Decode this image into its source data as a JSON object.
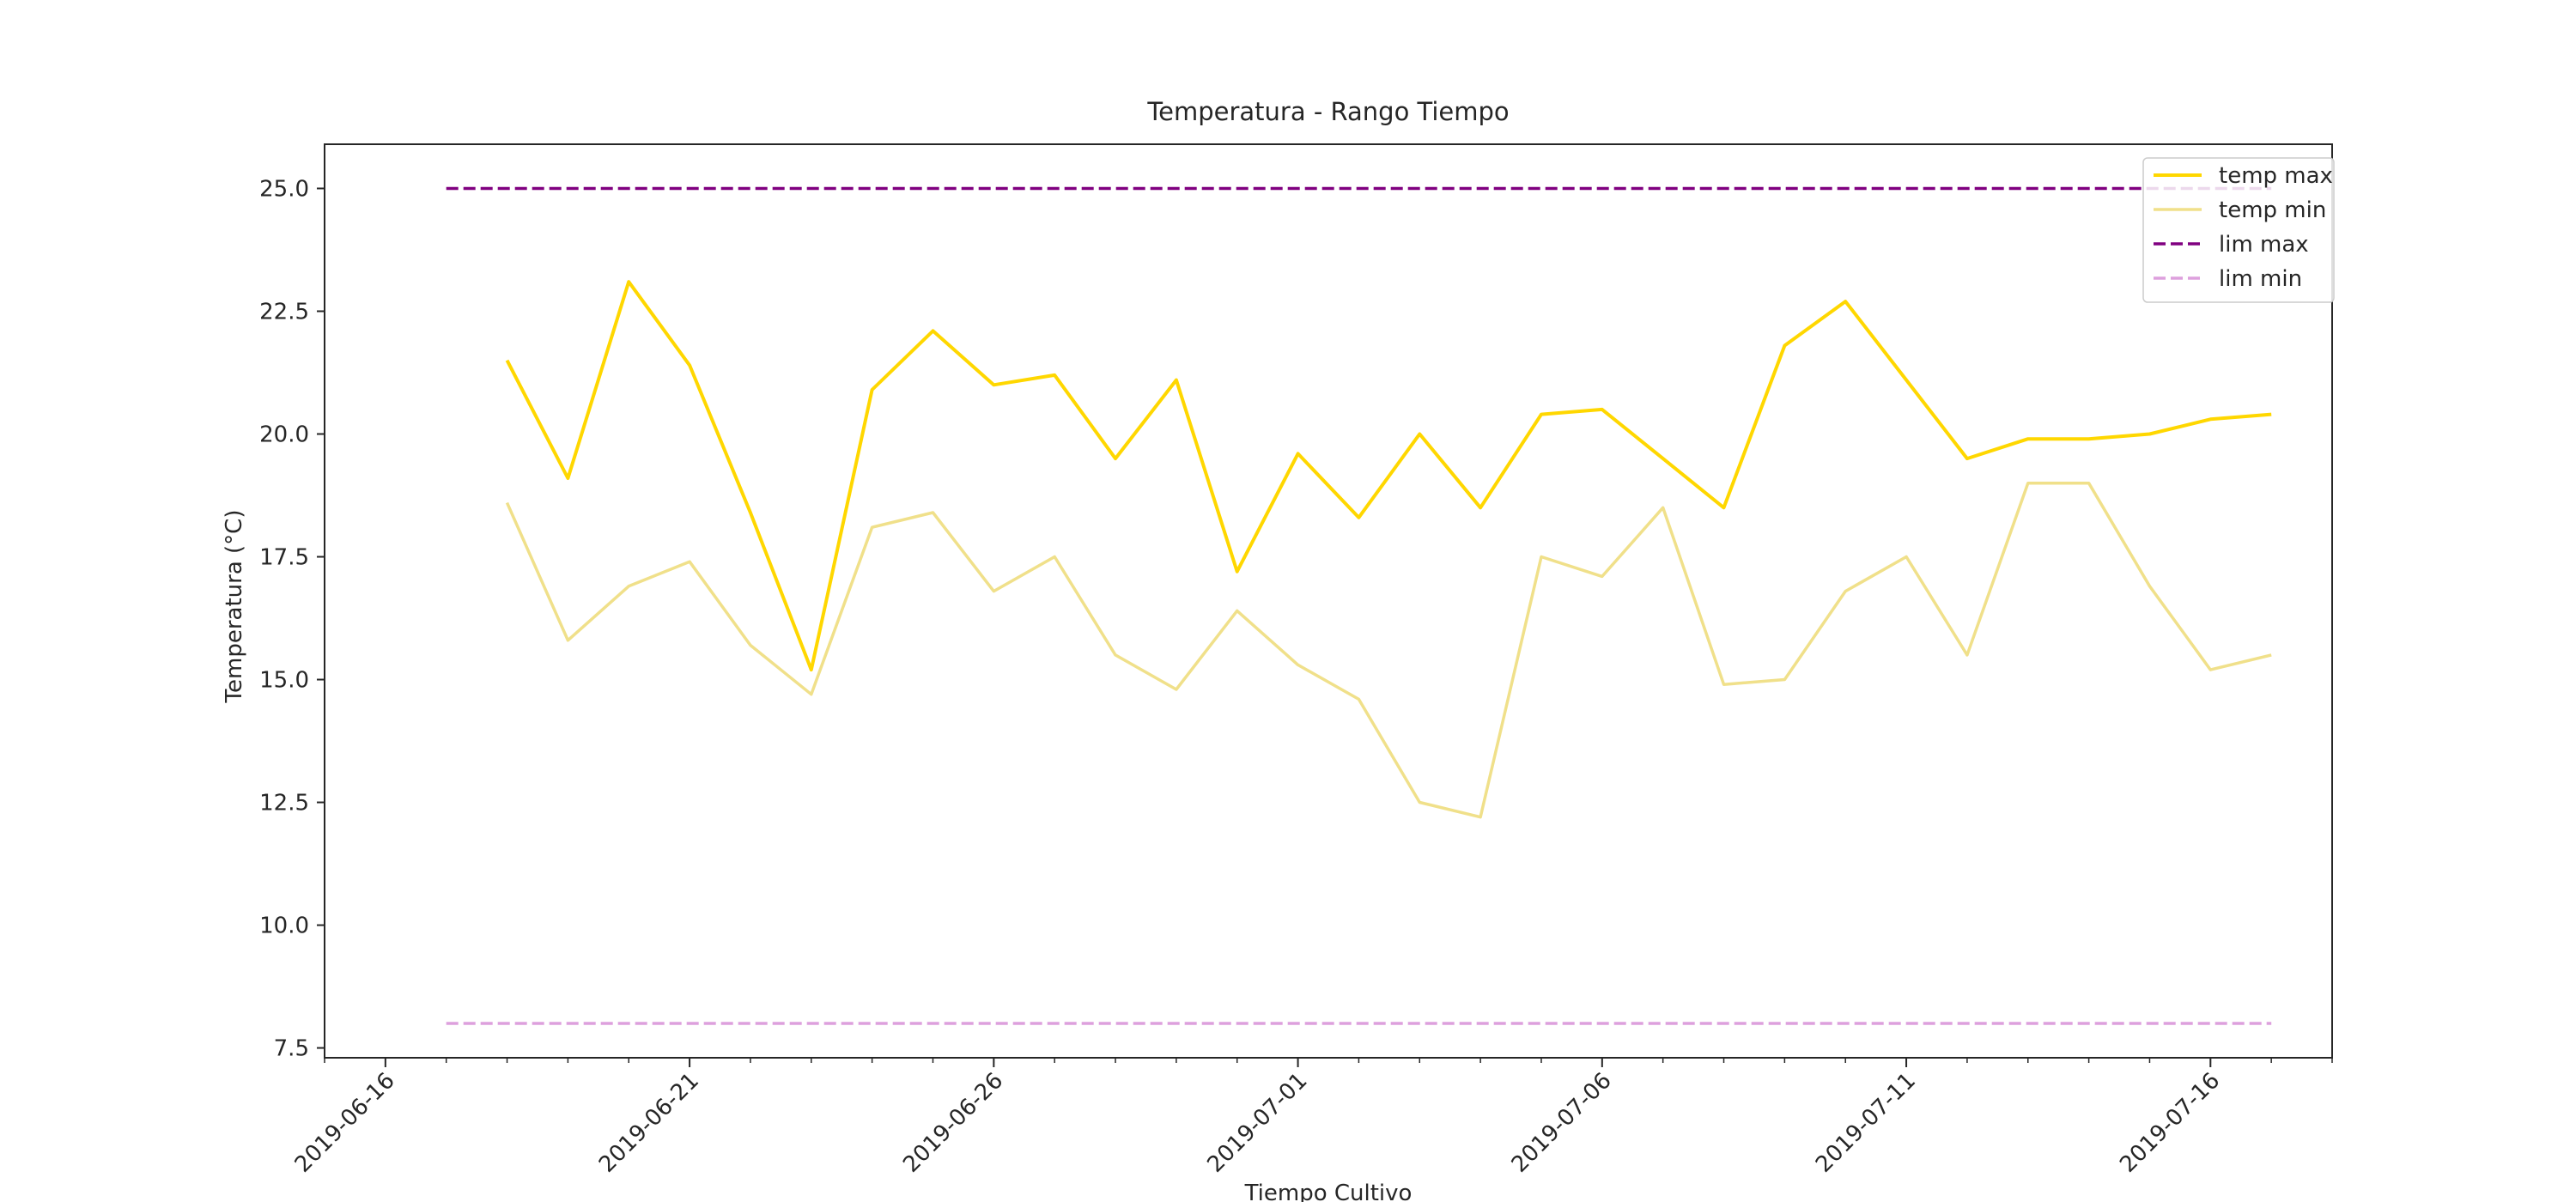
{
  "chart_data": {
    "type": "line",
    "title": "Temperatura - Rango Tiempo",
    "xlabel": "Tiempo Cultivo",
    "ylabel": "Temperatura (°C)",
    "x_axis_type": "date",
    "xlim": [
      "2019-06-15",
      "2019-07-18"
    ],
    "ylim": [
      7.3,
      25.9
    ],
    "x_ticks": [
      "2019-06-16",
      "2019-06-21",
      "2019-06-26",
      "2019-07-01",
      "2019-07-06",
      "2019-07-11",
      "2019-07-16"
    ],
    "y_ticks": [
      "7.5",
      "10.0",
      "12.5",
      "15.0",
      "17.5",
      "20.0",
      "22.5",
      "25.0"
    ],
    "grid": false,
    "legend_position": "top-right",
    "x": [
      "2019-06-18",
      "2019-06-19",
      "2019-06-20",
      "2019-06-21",
      "2019-06-22",
      "2019-06-23",
      "2019-06-24",
      "2019-06-25",
      "2019-06-26",
      "2019-06-27",
      "2019-06-28",
      "2019-06-29",
      "2019-06-30",
      "2019-07-01",
      "2019-07-02",
      "2019-07-03",
      "2019-07-04",
      "2019-07-05",
      "2019-07-06",
      "2019-07-07",
      "2019-07-08",
      "2019-07-09",
      "2019-07-10",
      "2019-07-11",
      "2019-07-12",
      "2019-07-13",
      "2019-07-14",
      "2019-07-15",
      "2019-07-16",
      "2019-07-17"
    ],
    "series": [
      {
        "name": "temp max",
        "color": "#FFD700",
        "style": "solid",
        "values": [
          21.5,
          19.1,
          23.1,
          21.4,
          18.4,
          15.2,
          20.9,
          22.1,
          21.0,
          21.2,
          19.5,
          21.1,
          17.2,
          19.6,
          18.3,
          20.0,
          18.5,
          20.4,
          20.5,
          19.5,
          18.5,
          21.8,
          22.7,
          21.1,
          19.5,
          19.9,
          19.9,
          20.0,
          20.3,
          20.4
        ]
      },
      {
        "name": "temp min",
        "color": "#F0E08A",
        "style": "solid",
        "values": [
          18.6,
          15.8,
          16.9,
          17.4,
          15.7,
          14.7,
          18.1,
          18.4,
          16.8,
          17.5,
          15.5,
          14.8,
          16.4,
          15.3,
          14.6,
          12.5,
          12.2,
          17.5,
          17.1,
          18.5,
          14.9,
          15.0,
          16.8,
          17.5,
          15.5,
          19.0,
          19.0,
          16.9,
          15.2,
          15.5
        ]
      },
      {
        "name": "lim max",
        "color": "#800080",
        "style": "dashed",
        "x": [
          "2019-06-17",
          "2019-07-17"
        ],
        "values": [
          25.0,
          25.0
        ]
      },
      {
        "name": "lim min",
        "color": "#DDA0DD",
        "style": "dashed",
        "x": [
          "2019-06-17",
          "2019-07-17"
        ],
        "values": [
          8.0,
          8.0
        ]
      }
    ]
  }
}
